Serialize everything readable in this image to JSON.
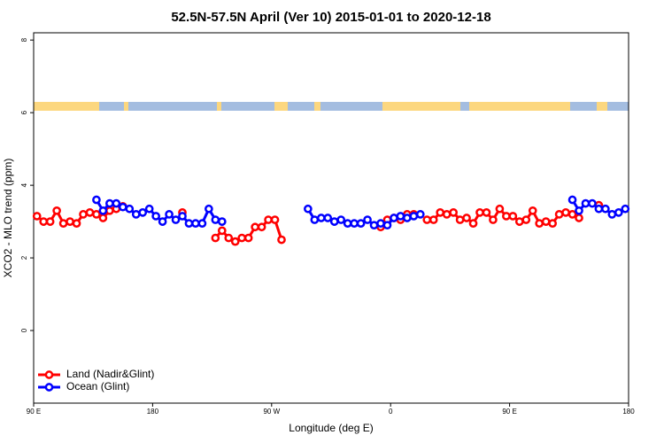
{
  "chart_data": {
    "type": "line",
    "title": "52.5N-57.5N April (Ver 10)   2015-01-01 to 2020-12-18",
    "x_label": "Longitude (deg E)",
    "y_label": "XCO2 - MLO trend (ppm)",
    "xlim": [
      90,
      540
    ],
    "ylim": [
      -2,
      8.2
    ],
    "xticks": [
      {
        "value": 90,
        "label": "90 E"
      },
      180,
      {
        "value": 270,
        "label": "90 W"
      },
      {
        "value": 360,
        "label": "0"
      },
      {
        "value": 450,
        "label": "90 E"
      },
      {
        "value": 540,
        "label": "180"
      }
    ],
    "yticks": [
      0,
      2,
      4,
      6,
      8
    ],
    "legend": "bottom-left",
    "x": [
      92.5,
      97.5,
      102.5,
      107.5,
      112.5,
      117.5,
      122.5,
      127.5,
      132.5,
      137.5,
      142.5,
      147.5,
      152.5,
      157.5,
      162.5,
      167.5,
      172.5,
      177.5,
      182.5,
      187.5,
      192.5,
      197.5,
      202.5,
      207.5,
      212.5,
      217.5,
      222.5,
      227.5,
      232.5,
      237.5,
      242.5,
      247.5,
      252.5,
      257.5,
      262.5,
      267.5,
      272.5,
      277.5,
      282.5,
      287.5,
      292.5,
      297.5,
      302.5,
      307.5,
      312.5,
      317.5,
      322.5,
      327.5,
      332.5,
      337.5,
      342.5,
      347.5,
      352.5,
      357.5,
      362.5,
      367.5,
      372.5,
      377.5,
      382.5,
      387.5,
      392.5,
      397.5,
      402.5,
      407.5,
      412.5,
      417.5,
      422.5,
      427.5,
      432.5,
      437.5,
      442.5,
      447.5,
      452.5,
      457.5,
      462.5,
      467.5,
      472.5,
      477.5,
      482.5,
      487.5,
      492.5,
      497.5,
      502.5,
      507.5,
      512.5,
      517.5,
      522.5,
      527.5,
      532.5,
      537.5
    ],
    "series": [
      {
        "name": "Land (Nadir&Glint)",
        "color": "#ff0000",
        "values": [
          3.15,
          3.0,
          3.0,
          3.3,
          2.95,
          3.0,
          2.95,
          3.2,
          3.25,
          3.2,
          3.1,
          3.3,
          3.35,
          3.42,
          null,
          null,
          null,
          null,
          null,
          null,
          null,
          null,
          3.25,
          null,
          null,
          null,
          null,
          2.55,
          2.75,
          2.55,
          2.45,
          2.55,
          2.55,
          2.85,
          2.85,
          3.05,
          3.05,
          2.5,
          null,
          null,
          null,
          null,
          null,
          null,
          null,
          null,
          null,
          null,
          null,
          null,
          null,
          null,
          2.85,
          3.05,
          3.1,
          3.05,
          3.2,
          3.2,
          null,
          3.05,
          3.05,
          3.25,
          3.2,
          3.25,
          3.05,
          3.1,
          2.95,
          3.25,
          3.25,
          3.05,
          3.35,
          3.15,
          3.15,
          3.0,
          3.05,
          3.3,
          2.95,
          3.0,
          2.95,
          3.2,
          3.25,
          3.2,
          3.1,
          null,
          null,
          3.45,
          null,
          null,
          null,
          null
        ]
      },
      {
        "name": "Ocean (Glint)",
        "color": "#0000ff",
        "values": [
          null,
          null,
          null,
          null,
          null,
          null,
          null,
          null,
          null,
          3.6,
          3.3,
          3.5,
          3.5,
          3.4,
          3.35,
          3.2,
          3.25,
          3.35,
          3.15,
          3.0,
          3.2,
          3.05,
          3.15,
          2.95,
          2.95,
          2.95,
          3.35,
          3.05,
          3.0,
          null,
          null,
          null,
          null,
          null,
          null,
          null,
          null,
          null,
          null,
          null,
          null,
          3.35,
          3.05,
          3.1,
          3.1,
          3.0,
          3.05,
          2.95,
          2.95,
          2.95,
          3.05,
          2.9,
          2.95,
          2.9,
          3.1,
          3.15,
          3.1,
          3.15,
          3.2,
          null,
          null,
          null,
          null,
          null,
          null,
          null,
          null,
          null,
          null,
          null,
          null,
          null,
          null,
          null,
          null,
          null,
          null,
          null,
          null,
          null,
          null,
          3.6,
          3.3,
          3.5,
          3.5,
          3.35,
          3.35,
          3.2,
          3.25,
          3.35
        ]
      }
    ]
  }
}
